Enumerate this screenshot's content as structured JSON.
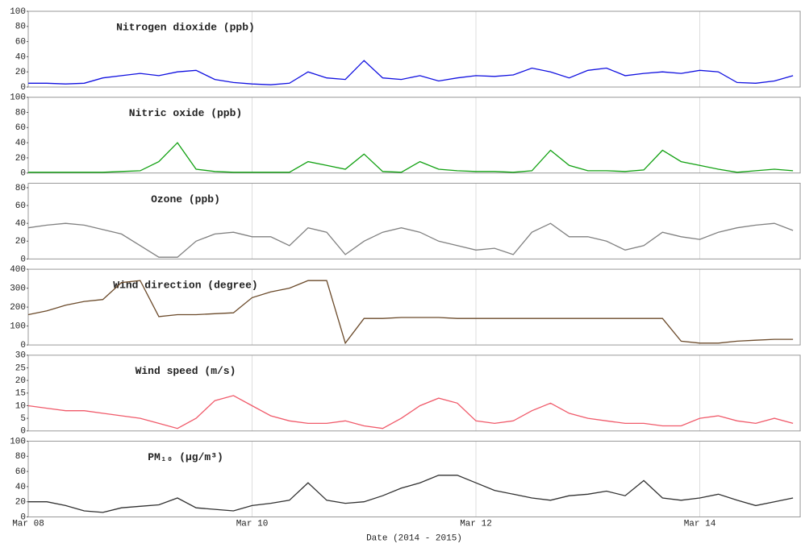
{
  "chart_data": [
    {
      "type": "line",
      "title": "Nitrogen dioxide (ppb)",
      "color": "#1010e0",
      "ylim": [
        0,
        100
      ],
      "yticks": [
        0,
        20,
        40,
        60,
        80,
        100
      ],
      "values": [
        5,
        5,
        4,
        5,
        12,
        15,
        18,
        15,
        20,
        22,
        10,
        6,
        4,
        3,
        5,
        20,
        12,
        10,
        35,
        12,
        10,
        15,
        8,
        12,
        15,
        14,
        16,
        25,
        20,
        12,
        22,
        25,
        15,
        18,
        20,
        18,
        22,
        20,
        6,
        5,
        8,
        15
      ]
    },
    {
      "type": "line",
      "title": "Nitric oxide (ppb)",
      "color": "#10a010",
      "ylim": [
        0,
        100
      ],
      "yticks": [
        0,
        20,
        40,
        60,
        80,
        100
      ],
      "values": [
        1,
        1,
        1,
        1,
        1,
        2,
        3,
        15,
        40,
        5,
        2,
        1,
        1,
        1,
        1,
        15,
        10,
        5,
        25,
        2,
        1,
        15,
        5,
        3,
        2,
        2,
        1,
        3,
        30,
        10,
        3,
        3,
        2,
        4,
        30,
        15,
        10,
        5,
        1,
        3,
        5,
        3
      ]
    },
    {
      "type": "line",
      "title": "Ozone (ppb)",
      "color": "#808080",
      "ylim": [
        0,
        85
      ],
      "yticks": [
        0,
        20,
        40,
        60,
        80
      ],
      "values": [
        35,
        38,
        40,
        38,
        33,
        28,
        15,
        2,
        2,
        20,
        28,
        30,
        25,
        25,
        15,
        35,
        30,
        5,
        20,
        30,
        35,
        30,
        20,
        15,
        10,
        12,
        5,
        30,
        40,
        25,
        25,
        20,
        10,
        15,
        30,
        25,
        22,
        30,
        35,
        38,
        40,
        32
      ]
    },
    {
      "type": "line",
      "title": "Wind direction (degree)",
      "color": "#6b4a2a",
      "ylim": [
        0,
        400
      ],
      "yticks": [
        0,
        100,
        200,
        300,
        400
      ],
      "values": [
        160,
        180,
        210,
        230,
        240,
        330,
        340,
        150,
        160,
        160,
        165,
        170,
        250,
        280,
        300,
        340,
        340,
        10,
        140,
        140,
        145,
        145,
        145,
        140,
        140,
        140,
        140,
        140,
        140,
        140,
        140,
        140,
        140,
        140,
        140,
        20,
        10,
        10,
        20,
        25,
        30,
        30
      ]
    },
    {
      "type": "line",
      "title": "Wind speed (m/s)",
      "color": "#f05a6a",
      "ylim": [
        0,
        30
      ],
      "yticks": [
        0,
        5,
        10,
        15,
        20,
        25,
        30
      ],
      "values": [
        10,
        9,
        8,
        8,
        7,
        6,
        5,
        3,
        1,
        5,
        12,
        14,
        10,
        6,
        4,
        3,
        3,
        4,
        2,
        1,
        5,
        10,
        13,
        11,
        4,
        3,
        4,
        8,
        11,
        7,
        5,
        4,
        3,
        3,
        2,
        2,
        5,
        6,
        4,
        3,
        5,
        3
      ]
    },
    {
      "type": "line",
      "title": "PM₁₀ (µg/m³)",
      "color": "#303030",
      "ylim": [
        0,
        100
      ],
      "yticks": [
        0,
        20,
        40,
        60,
        80,
        100
      ],
      "values": [
        20,
        20,
        15,
        8,
        6,
        12,
        14,
        16,
        25,
        12,
        10,
        8,
        15,
        18,
        22,
        45,
        22,
        18,
        20,
        28,
        38,
        45,
        55,
        55,
        45,
        35,
        30,
        25,
        22,
        28,
        30,
        34,
        28,
        48,
        25,
        22,
        25,
        30,
        22,
        15,
        20,
        25
      ],
      "categories": [
        "Mar 08",
        null,
        null,
        null,
        null,
        null,
        null,
        null,
        null,
        null,
        null,
        null,
        "Mar 10",
        null,
        null,
        null,
        null,
        null,
        null,
        null,
        null,
        null,
        null,
        null,
        "Mar 12",
        null,
        null,
        null,
        null,
        null,
        null,
        null,
        null,
        null,
        null,
        null,
        "Mar 14",
        null,
        null,
        null,
        null,
        null
      ],
      "xlabel": "Date (2014 - 2015)"
    }
  ]
}
